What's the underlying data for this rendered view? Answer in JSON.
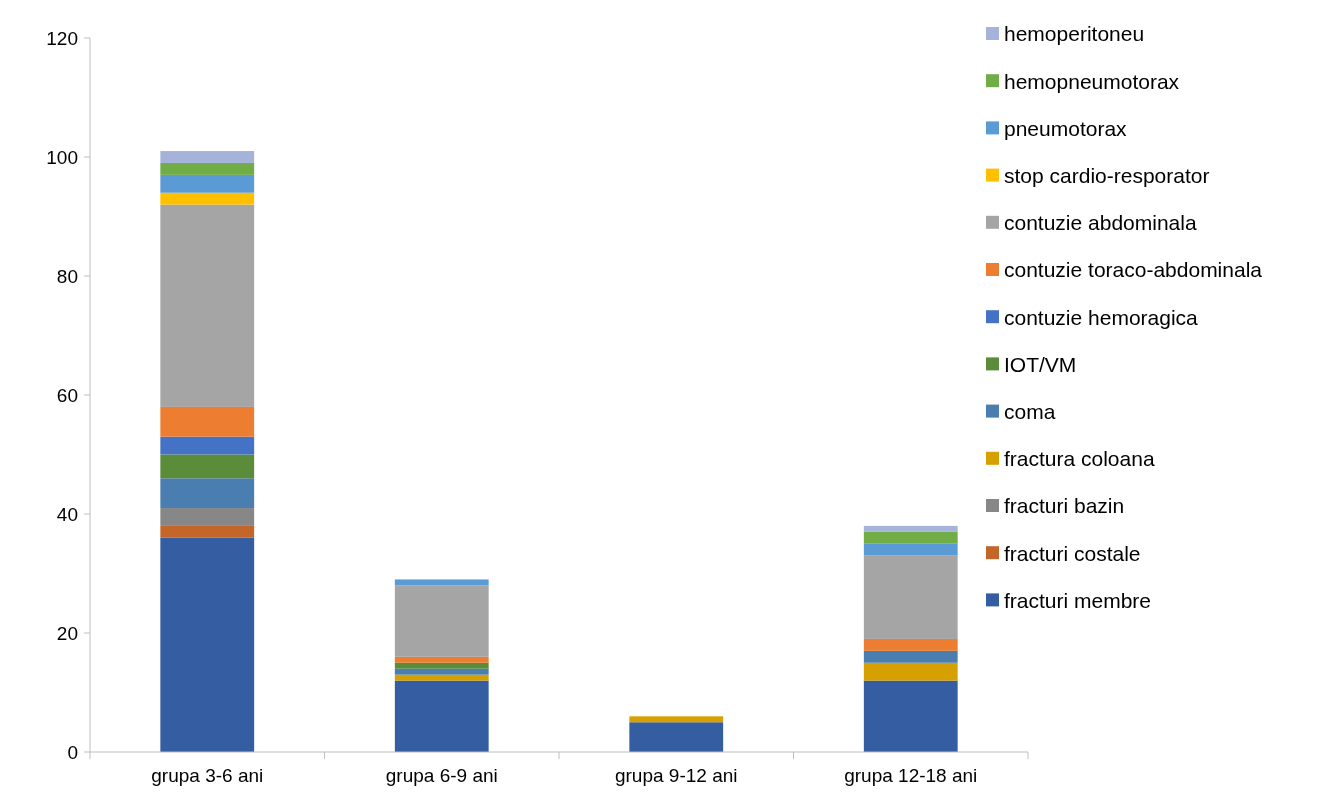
{
  "chart_data": {
    "type": "bar",
    "stacked": true,
    "categories": [
      "grupa 3-6 ani",
      "grupa 6-9 ani",
      "grupa 9-12 ani",
      "grupa 12-18 ani"
    ],
    "ylim": [
      0,
      120
    ],
    "yticks": [
      0,
      20,
      40,
      60,
      80,
      100,
      120
    ],
    "grid": false,
    "legend": "right",
    "series": [
      {
        "name": "fracturi membre",
        "color": "#345ea1",
        "values": [
          36,
          12,
          5,
          12
        ]
      },
      {
        "name": "fracturi costale",
        "color": "#c4652a",
        "values": [
          2,
          0,
          0,
          0
        ]
      },
      {
        "name": "fracturi bazin",
        "color": "#878787",
        "values": [
          3,
          0,
          0,
          0
        ]
      },
      {
        "name": "fractura coloana",
        "color": "#d6a100",
        "values": [
          0,
          1,
          1,
          3
        ]
      },
      {
        "name": "coma",
        "color": "#4a7eb0",
        "values": [
          5,
          1,
          0,
          2
        ]
      },
      {
        "name": "IOT/VM",
        "color": "#5a8c3a",
        "values": [
          4,
          1,
          0,
          0
        ]
      },
      {
        "name": "contuzie hemoragica",
        "color": "#4472c4",
        "values": [
          3,
          0,
          0,
          0
        ]
      },
      {
        "name": "contuzie toraco-abdominala",
        "color": "#ed7d31",
        "values": [
          5,
          1,
          0,
          2
        ]
      },
      {
        "name": "contuzie abdominala",
        "color": "#a5a5a5",
        "values": [
          34,
          12,
          0,
          14
        ]
      },
      {
        "name": "stop cardio-resporator",
        "color": "#ffc000",
        "values": [
          2,
          0,
          0,
          0
        ]
      },
      {
        "name": "pneumotorax",
        "color": "#5b9bd5",
        "values": [
          3,
          1,
          0,
          2
        ]
      },
      {
        "name": "hemopneumotorax",
        "color": "#70ad47",
        "values": [
          2,
          0,
          0,
          2
        ]
      },
      {
        "name": "hemoperitoneu",
        "color": "#a5b2da",
        "values": [
          2,
          0,
          0,
          1
        ]
      }
    ]
  }
}
